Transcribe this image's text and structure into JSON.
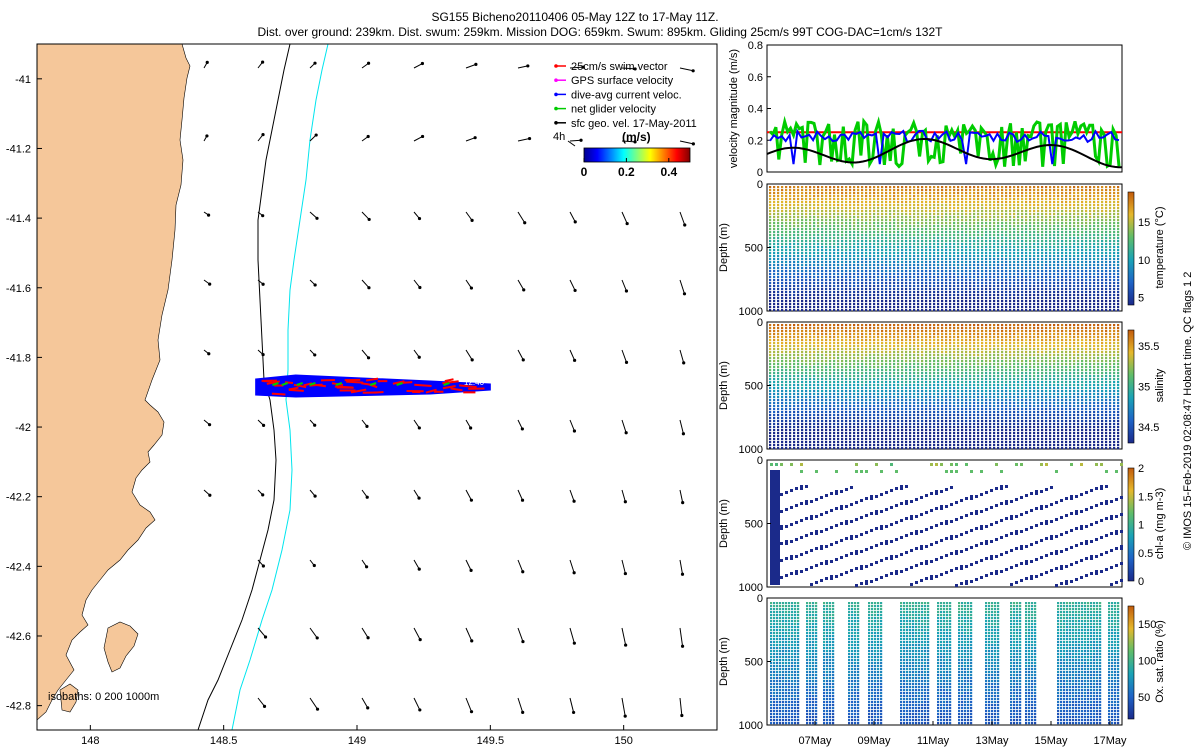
{
  "header": {
    "title": "SG155 Bicheno20110406 05-May 12Z to 17-May 11Z.",
    "subtitle": "Dist. over ground: 239km. Dist. swum: 259km. Mission DOG: 659km. Swum: 895km. Gliding 25cm/s 99T COG-DAC=1cm/s 132T"
  },
  "credit": "© IMOS 15-Feb-2019 02:08:47 Hobart time. QC flags 1  2",
  "colors": {
    "land": "#f5c79a",
    "isobath_0": "#000000",
    "isobath_1000": "#00e5ee",
    "track_red": "#ff0000",
    "track_blue": "#0000ff",
    "velocity_black": "#000000",
    "velocity_green": "#00cc00",
    "velocity_red": "#ff0000",
    "velocity_blue": "#0000ff"
  },
  "chart_data": [
    {
      "type": "map",
      "xlim": [
        147.8,
        150.35
      ],
      "ylim": [
        -42.87,
        -40.9
      ],
      "x_ticks": [
        "148",
        "148.5",
        "149",
        "149.5",
        "150"
      ],
      "y_ticks": [
        "-41",
        "-41.2",
        "-41.4",
        "-41.6",
        "-41.8",
        "-42",
        "-42.2",
        "-42.4",
        "-42.6",
        "-42.8"
      ],
      "isobath_label": "isobaths: 0  200  1000m",
      "legend": [
        {
          "label": "25cm/s swim vector",
          "color": "#ff0000"
        },
        {
          "label": "GPS surface velocity",
          "color": "#ff00ff"
        },
        {
          "label": "dive-avg current veloc.",
          "color": "#0000ff"
        },
        {
          "label": "net glider velocity",
          "color": "#00cc00"
        },
        {
          "label": "sfc geo. vel. 17-May-2011",
          "color": "#000000"
        }
      ],
      "colorbar": {
        "label": "(m/s)",
        "ticks": [
          "0",
          "0.2",
          "0.4"
        ],
        "range": [
          0,
          0.5
        ]
      },
      "scale_label": "4h",
      "track_end_label": "12:40",
      "glider_track": {
        "lon_start": 148.62,
        "lon_end": 149.5,
        "lat": -41.885
      }
    },
    {
      "type": "line",
      "ylabel": "velocity magnitude (m/s)",
      "ylim": [
        0,
        0.8
      ],
      "y_ticks": [
        "0",
        "0.2",
        "0.4",
        "0.6",
        "0.8"
      ],
      "series": [
        {
          "color": "#ff0000",
          "values": [
            0.25,
            0.25,
            0.25,
            0.25
          ]
        },
        {
          "color": "#00cc00",
          "values": [
            0.28,
            0.1,
            0.3,
            0.05,
            0.25,
            0.02,
            0.29,
            0.08,
            0.27,
            0.03
          ]
        },
        {
          "color": "#0000ff",
          "values": [
            0.22,
            0.2,
            0.05,
            0.24,
            0.19,
            0.23,
            0.05,
            0.26,
            0.2,
            0.22
          ]
        },
        {
          "color": "#000000",
          "values": [
            0.07,
            0.18,
            0.06,
            0.17,
            0.06,
            0.09,
            0.2,
            0.06,
            0.08
          ]
        }
      ]
    },
    {
      "type": "scatter",
      "ylabel": "Depth (m)",
      "ylim": [
        1000,
        0
      ],
      "y_ticks": [
        "0",
        "500",
        "1000"
      ],
      "colorbar": {
        "label": "temperature (°C)",
        "ticks": [
          "15",
          "10",
          "5"
        ],
        "range": [
          4,
          19
        ]
      }
    },
    {
      "type": "scatter",
      "ylabel": "Depth (m)",
      "ylim": [
        1000,
        0
      ],
      "y_ticks": [
        "0",
        "500",
        "1000"
      ],
      "colorbar": {
        "label": "salinity",
        "ticks": [
          "35.5",
          "35",
          "34.5"
        ],
        "range": [
          34.3,
          35.7
        ]
      }
    },
    {
      "type": "scatter",
      "ylabel": "Depth (m)",
      "ylim": [
        1000,
        0
      ],
      "y_ticks": [
        "0",
        "500",
        "1000"
      ],
      "colorbar": {
        "label": "chl-a (mg m-3)",
        "ticks": [
          "2",
          "1.5",
          "1",
          "0.5",
          "0"
        ],
        "range": [
          0,
          2
        ]
      }
    },
    {
      "type": "scatter",
      "ylabel": "Depth (m)",
      "ylim": [
        1000,
        0
      ],
      "y_ticks": [
        "0",
        "500",
        "1000"
      ],
      "x_ticks": [
        "07May",
        "09May",
        "11May",
        "13May",
        "15May",
        "17May"
      ],
      "colorbar": {
        "label": "Ox. sat. ratio (%)",
        "ticks": [
          "150",
          "100",
          "50"
        ],
        "range": [
          20,
          175
        ]
      }
    }
  ]
}
